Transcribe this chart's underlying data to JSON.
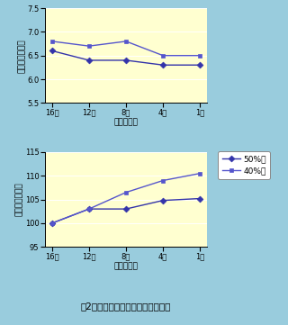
{
  "x_labels": [
    "16週",
    "12週",
    "8週",
    "4週",
    "1週"
  ],
  "top_chart": {
    "ylabel": "総蛋白量（％）",
    "xlabel": "分娩前週数",
    "ylim": [
      5.5,
      7.5
    ],
    "yticks": [
      5.5,
      6.0,
      6.5,
      7.0,
      7.5
    ],
    "series_50": [
      6.6,
      6.4,
      6.4,
      6.3,
      6.3
    ],
    "series_40": [
      6.8,
      6.7,
      6.8,
      6.5,
      6.5
    ]
  },
  "bottom_chart": {
    "ylabel": "増加割合（％）",
    "xlabel": "分娩前週数",
    "ylim": [
      95,
      115
    ],
    "yticks": [
      95,
      100,
      105,
      110,
      115
    ],
    "series_50": [
      100.0,
      103.0,
      103.0,
      104.8,
      105.2
    ],
    "series_40": [
      100.0,
      103.0,
      106.5,
      109.0,
      110.5
    ]
  },
  "legend_labels": [
    "50%区",
    "40%区"
  ],
  "line_color_50": "#3333aa",
  "line_color_40": "#5555cc",
  "marker_50": "D",
  "marker_40": "s",
  "bg_color": "#ffffd0",
  "outer_bg": "#99ccdd",
  "title": "囲2　体重及び血浆総蛋白量の推移",
  "title_fontsize": 7.5,
  "axis_fontsize": 6.5,
  "tick_fontsize": 6.0,
  "legend_fontsize": 6.5
}
